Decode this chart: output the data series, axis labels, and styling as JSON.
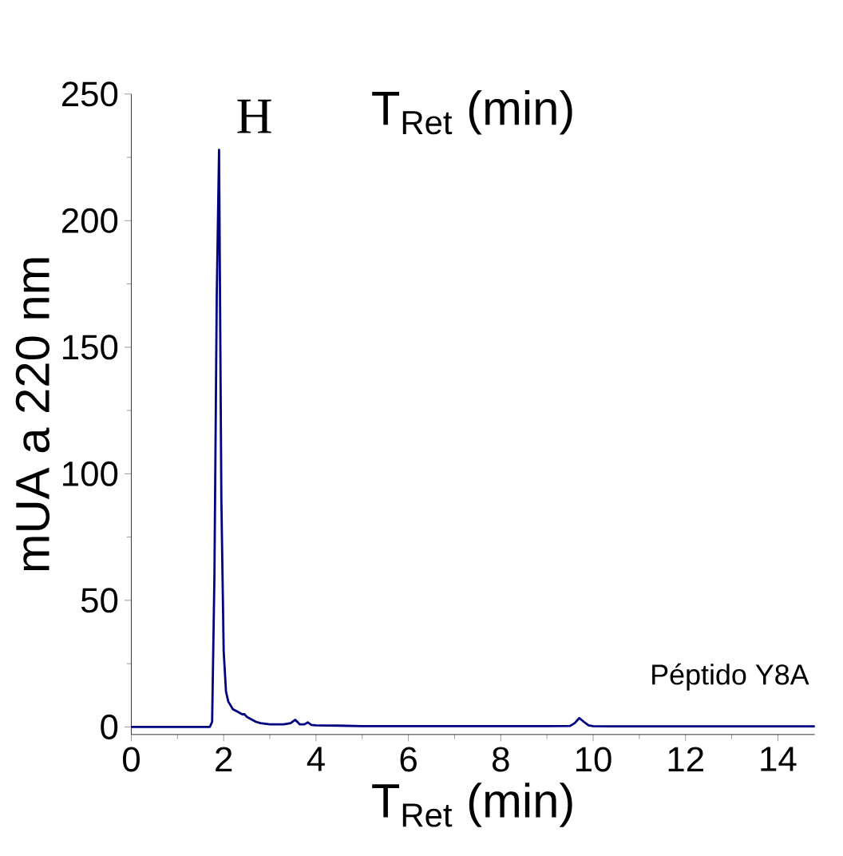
{
  "chart_data": {
    "type": "line",
    "title": "T$_{Ret}$ (min)",
    "xlabel": "T$_{Ret}$ (min)",
    "ylabel": "mUA a 220 nm",
    "annotations": [
      "H",
      "Péptido Y8A"
    ],
    "x": [
      0,
      0.5,
      1.0,
      1.5,
      1.7,
      1.75,
      1.8,
      1.85,
      1.9,
      1.95,
      2.0,
      2.05,
      2.1,
      2.2,
      2.3,
      2.4,
      2.45,
      2.5,
      2.6,
      2.7,
      2.8,
      3.0,
      3.3,
      3.45,
      3.55,
      3.65,
      3.75,
      3.82,
      3.9,
      4.0,
      4.5,
      5.0,
      6.0,
      7.0,
      8.0,
      9.0,
      9.5,
      9.6,
      9.7,
      9.8,
      9.9,
      10.0,
      10.5,
      11,
      12,
      13,
      14,
      14.8
    ],
    "series": [
      {
        "color": "#000080",
        "values": [
          0,
          0,
          0,
          0,
          0,
          2,
          60,
          170,
          228,
          90,
          30,
          14,
          10,
          7,
          6,
          5,
          5,
          4,
          3,
          2,
          1.5,
          1,
          1,
          1.5,
          2.8,
          1,
          1,
          1.8,
          0.8,
          0.6,
          0.5,
          0.3,
          0.3,
          0.3,
          0.3,
          0.3,
          0.4,
          1.5,
          3.5,
          2,
          0.6,
          0.3,
          0.2,
          0.2,
          0.2,
          0.2,
          0.2,
          0.2
        ]
      }
    ],
    "xlim": [
      0,
      14.8
    ],
    "ylim": [
      -3,
      250
    ],
    "xticks": [
      0,
      2,
      4,
      6,
      8,
      10,
      12,
      14
    ],
    "yticks": [
      0,
      50,
      100,
      150,
      200,
      250
    ],
    "grid": false,
    "marker": "none",
    "line_style": "solid"
  }
}
